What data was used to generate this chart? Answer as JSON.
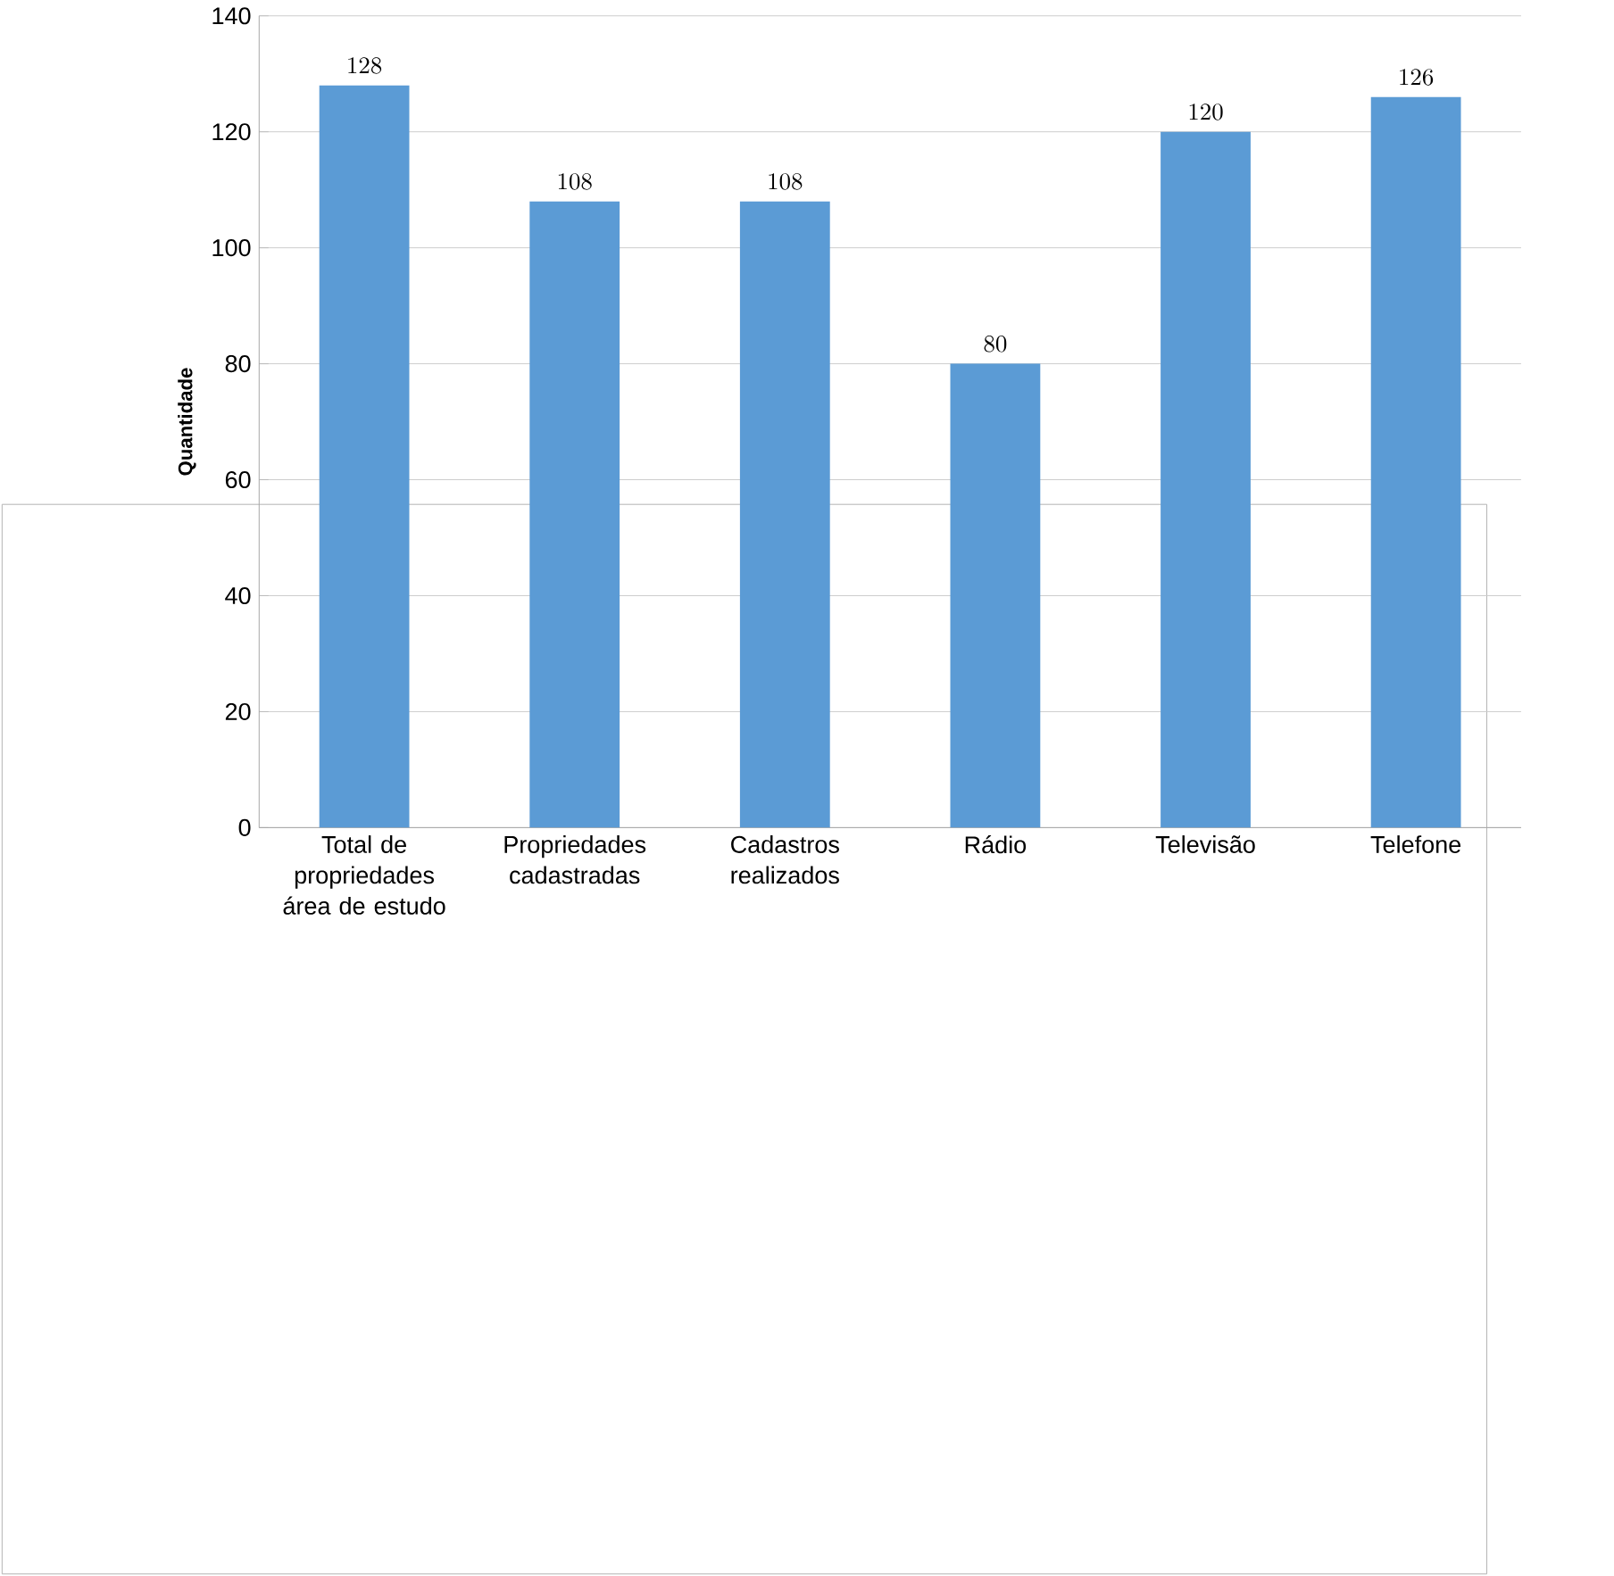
{
  "chart_data": {
    "type": "bar",
    "ylabel": "Quantidade",
    "categories": [
      "Total de propriedades área de estudo",
      "Propriedades cadastradas",
      "Cadastros realizados",
      "Rádio",
      "Televisão",
      "Telefone"
    ],
    "values": [
      128,
      108,
      108,
      80,
      120,
      126
    ],
    "color": "#5b9bd5",
    "ylim": [
      0,
      140
    ],
    "yticks": [
      0,
      20,
      40,
      60,
      80,
      100,
      120,
      140
    ],
    "grid": "y",
    "data_labels": true
  }
}
